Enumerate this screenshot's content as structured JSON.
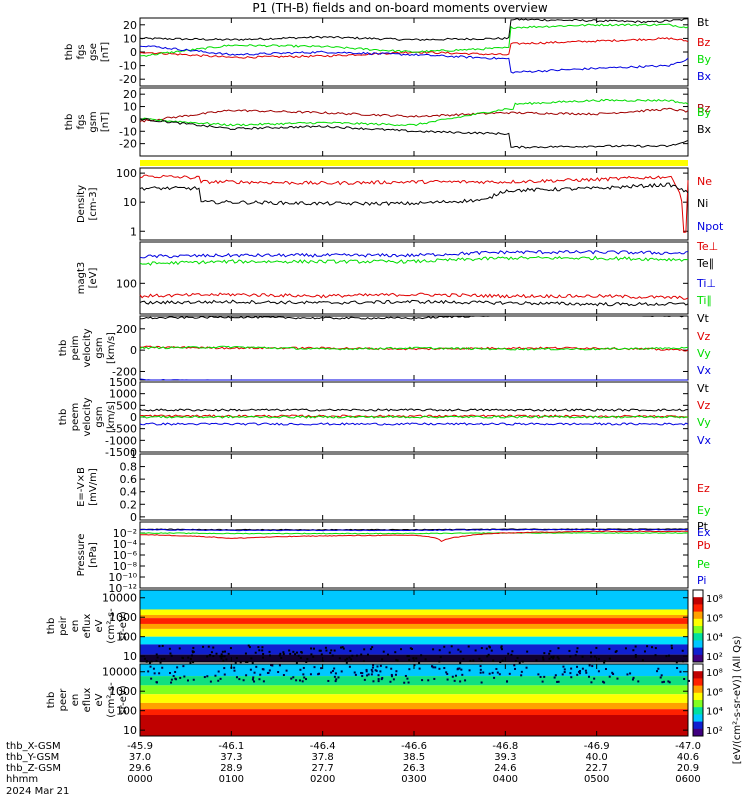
{
  "title": "P1 (TH-B) fields and on-board moments overview",
  "colors": {
    "black": "#000000",
    "red": "#e00000",
    "green": "#00dd00",
    "blue": "#0000e0",
    "darkred": "#a00000",
    "yellow": "#ffff00"
  },
  "chart_data": [
    {
      "type": "line",
      "id": "fgs-gse",
      "ylabel": [
        "thb",
        "fgs",
        "gse",
        "[nT]"
      ],
      "ylim": [
        -25,
        25
      ],
      "yticks": [
        20,
        10,
        0,
        -10,
        -20
      ],
      "legend": [
        {
          "name": "Bt",
          "color": "black"
        },
        {
          "name": "Bz",
          "color": "red"
        },
        {
          "name": "By",
          "color": "green"
        },
        {
          "name": "Bx",
          "color": "blue"
        }
      ],
      "series": [
        {
          "name": "Bt",
          "color": "black",
          "x": [
            0,
            1,
            2,
            3,
            4,
            4.05,
            5,
            5.6,
            5.8,
            6
          ],
          "y": [
            10,
            9,
            11,
            9,
            10,
            24,
            23,
            22,
            23,
            24
          ]
        },
        {
          "name": "Bz",
          "color": "red",
          "x": [
            0,
            1,
            2,
            3,
            4,
            4.05,
            5,
            5.8,
            6
          ],
          "y": [
            0,
            -4,
            -3,
            0,
            -2,
            6,
            8,
            10,
            8
          ]
        },
        {
          "name": "By",
          "color": "green",
          "x": [
            0,
            1,
            2,
            3,
            4,
            4.05,
            5,
            5.8,
            6
          ],
          "y": [
            -3,
            5,
            4,
            0,
            3,
            18,
            20,
            20,
            18
          ]
        },
        {
          "name": "Bx",
          "color": "blue",
          "x": [
            0,
            1,
            2,
            3,
            4,
            4.05,
            5,
            5.8,
            6
          ],
          "y": [
            5,
            -2,
            0,
            -2,
            -5,
            -15,
            -12,
            -10,
            -5
          ]
        }
      ]
    },
    {
      "type": "line",
      "id": "fgs-gsm",
      "ylabel": [
        "thb",
        "fgs",
        "gsm",
        "[nT]"
      ],
      "ylim": [
        -30,
        25
      ],
      "yticks": [
        20,
        10,
        0,
        -10,
        -20
      ],
      "legend": [
        {
          "name": "Bz",
          "color": "darkred"
        },
        {
          "name": "By",
          "color": "green"
        },
        {
          "name": "Bx",
          "color": "black"
        }
      ],
      "series": [
        {
          "name": "Bz",
          "color": "darkred",
          "x": [
            0,
            1,
            2,
            3,
            4,
            5,
            5.8,
            6
          ],
          "y": [
            -2,
            7,
            5,
            2,
            5,
            4,
            8,
            6
          ]
        },
        {
          "name": "By",
          "color": "green",
          "x": [
            0,
            1,
            2,
            3,
            4,
            4.1,
            5,
            5.8,
            6
          ],
          "y": [
            0,
            -5,
            -3,
            -5,
            8,
            12,
            15,
            15,
            12
          ]
        },
        {
          "name": "Bx",
          "color": "black",
          "x": [
            0,
            1,
            2,
            3,
            4,
            4.05,
            5,
            5.8,
            6
          ],
          "y": [
            0,
            -8,
            -6,
            -10,
            -12,
            -23,
            -22,
            -22,
            -18
          ]
        }
      ]
    },
    {
      "type": "line",
      "id": "density",
      "ylog": true,
      "ylabel": [
        "Density",
        "[cm-3]"
      ],
      "ylim": [
        0.5,
        150
      ],
      "yticks": [
        100,
        10,
        1
      ],
      "legend": [
        {
          "name": "Ne",
          "color": "red"
        },
        {
          "name": "Ni",
          "color": "black"
        },
        {
          "name": "Npot",
          "color": "blue"
        }
      ],
      "series": [
        {
          "name": "Ne",
          "color": "red",
          "x": [
            0,
            0.6,
            0.65,
            1,
            2,
            3,
            4,
            5,
            5.8,
            5.95,
            6
          ],
          "y": [
            80,
            70,
            50,
            50,
            45,
            50,
            50,
            60,
            75,
            1,
            50
          ]
        },
        {
          "name": "Ni",
          "color": "black",
          "x": [
            0,
            0.6,
            0.65,
            1,
            2,
            3,
            3.8,
            4,
            5,
            5.8,
            6
          ],
          "y": [
            30,
            30,
            10,
            10,
            9,
            9,
            12,
            25,
            30,
            40,
            20
          ]
        }
      ]
    },
    {
      "type": "line",
      "id": "temperature",
      "ylog": true,
      "ylabel": [
        "magt3",
        "[eV]"
      ],
      "ylim": [
        8,
        3000
      ],
      "yticks": [
        100
      ],
      "legend": [
        {
          "name": "Te⊥",
          "color": "red"
        },
        {
          "name": "Te∥",
          "color": "black"
        },
        {
          "name": "Ti⊥",
          "color": "blue"
        },
        {
          "name": "Ti∥",
          "color": "green"
        }
      ],
      "series": [
        {
          "name": "Ti⊥",
          "color": "blue",
          "x": [
            0,
            1,
            2,
            3,
            4,
            5,
            6
          ],
          "y": [
            900,
            1000,
            1000,
            1000,
            1300,
            1300,
            1200
          ]
        },
        {
          "name": "Ti∥",
          "color": "green",
          "x": [
            0,
            1,
            2,
            3,
            4,
            5,
            6
          ],
          "y": [
            500,
            600,
            600,
            600,
            800,
            800,
            700
          ]
        },
        {
          "name": "Te⊥",
          "color": "red",
          "x": [
            0,
            1,
            2,
            3,
            4,
            5,
            6
          ],
          "y": [
            35,
            40,
            35,
            40,
            35,
            35,
            30
          ]
        },
        {
          "name": "Te∥",
          "color": "black",
          "x": [
            0,
            1,
            2,
            3,
            4,
            5,
            6
          ],
          "y": [
            20,
            22,
            20,
            22,
            20,
            18,
            18
          ]
        }
      ]
    },
    {
      "type": "line",
      "id": "peim-velocity",
      "ylabel": [
        "thb",
        "peim",
        "velocity",
        "gsm",
        "[km/s]"
      ],
      "ylim": [
        -280,
        320
      ],
      "yticks": [
        200,
        0,
        -200
      ],
      "legend": [
        {
          "name": "Vt",
          "color": "black"
        },
        {
          "name": "Vz",
          "color": "red"
        },
        {
          "name": "Vy",
          "color": "green"
        },
        {
          "name": "Vx",
          "color": "blue"
        }
      ],
      "series": [
        {
          "name": "Vt",
          "color": "black",
          "x": [
            0,
            1,
            2,
            3,
            4,
            5,
            6
          ],
          "y": [
            300,
            310,
            300,
            300,
            330,
            330,
            320
          ]
        },
        {
          "name": "Vz",
          "color": "red",
          "x": [
            0,
            1,
            2,
            3,
            4,
            5,
            6
          ],
          "y": [
            30,
            20,
            20,
            10,
            20,
            20,
            0
          ]
        },
        {
          "name": "Vy",
          "color": "green",
          "x": [
            0,
            1,
            2,
            3,
            4,
            5,
            6
          ],
          "y": [
            20,
            30,
            10,
            20,
            10,
            10,
            20
          ]
        },
        {
          "name": "Vx",
          "color": "blue",
          "x": [
            0,
            1,
            2,
            3,
            3.8,
            4,
            5,
            6
          ],
          "y": [
            -280,
            -290,
            -290,
            -290,
            -300,
            -330,
            -330,
            -300
          ]
        }
      ]
    },
    {
      "type": "line",
      "id": "peem-velocity",
      "ylabel": [
        "thb",
        "peem",
        "velocity",
        "gsm",
        "[km/s]"
      ],
      "ylim": [
        -1500,
        1500
      ],
      "yticks": [
        1500,
        1000,
        500,
        0,
        -500,
        -1000,
        -1500
      ],
      "legend": [
        {
          "name": "Vt",
          "color": "black"
        },
        {
          "name": "Vz",
          "color": "red"
        },
        {
          "name": "Vy",
          "color": "green"
        },
        {
          "name": "Vx",
          "color": "blue"
        }
      ],
      "series": [
        {
          "name": "Vt",
          "color": "black",
          "x": [
            0,
            1,
            2,
            3,
            4,
            5,
            6
          ],
          "y": [
            300,
            300,
            300,
            300,
            300,
            300,
            300
          ]
        },
        {
          "name": "Vz",
          "color": "red",
          "x": [
            0,
            1,
            2,
            3,
            4,
            5,
            6
          ],
          "y": [
            50,
            40,
            40,
            40,
            40,
            30,
            30
          ]
        },
        {
          "name": "Vy",
          "color": "green",
          "x": [
            0,
            1,
            2,
            3,
            4,
            5,
            6
          ],
          "y": [
            0,
            0,
            0,
            0,
            0,
            0,
            0
          ]
        },
        {
          "name": "Vx",
          "color": "blue",
          "x": [
            0,
            1,
            2,
            3,
            4,
            5,
            6
          ],
          "y": [
            -300,
            -300,
            -300,
            -300,
            -300,
            -300,
            -300
          ]
        }
      ]
    },
    {
      "type": "line",
      "id": "efield",
      "ylabel": [
        "E=-V×B",
        "[mV/m]"
      ],
      "ylim": [
        -0.05,
        1.0
      ],
      "yticks": [
        1.0,
        0.8,
        0.6,
        0.4,
        0.2,
        0.0
      ],
      "legend": [
        {
          "name": "Ez",
          "color": "red"
        },
        {
          "name": "Ey",
          "color": "green"
        },
        {
          "name": "Ex",
          "color": "blue"
        }
      ],
      "series": []
    },
    {
      "type": "line",
      "id": "pressure",
      "ylog": true,
      "ylabel": [
        "Pressure",
        "[nPa]"
      ],
      "ylim": [
        1e-12,
        1
      ],
      "yticks": [
        "10⁻²",
        "10⁻⁴",
        "10⁻⁶",
        "10⁻⁸",
        "10⁻¹⁰",
        "10⁻¹²"
      ],
      "legend": [
        {
          "name": "Pt",
          "color": "black"
        },
        {
          "name": "Pb",
          "color": "red"
        },
        {
          "name": "Pe",
          "color": "green"
        },
        {
          "name": "Pi",
          "color": "blue"
        }
      ],
      "series": [
        {
          "name": "Pt",
          "color": "black",
          "x": [
            0,
            1,
            2,
            3,
            4,
            5,
            6
          ],
          "y": [
            0.05,
            0.04,
            0.04,
            0.04,
            0.05,
            0.05,
            0.05
          ]
        },
        {
          "name": "Pi",
          "color": "blue",
          "x": [
            0,
            1,
            2,
            3,
            4,
            5,
            6
          ],
          "y": [
            0.04,
            0.03,
            0.03,
            0.03,
            0.04,
            0.04,
            0.04
          ]
        },
        {
          "name": "Pe",
          "color": "green",
          "x": [
            0,
            1,
            2,
            3,
            4,
            5,
            6
          ],
          "y": [
            0.01,
            0.008,
            0.008,
            0.008,
            0.01,
            0.01,
            0.01
          ]
        },
        {
          "name": "Pb",
          "color": "red",
          "x": [
            0,
            0.5,
            1,
            2,
            3,
            3.3,
            3.5,
            4,
            5,
            6
          ],
          "y": [
            0.005,
            0.003,
            0.001,
            0.003,
            0.004,
            0.0003,
            0.002,
            0.01,
            0.02,
            0.02
          ]
        }
      ]
    },
    {
      "type": "heatmap",
      "id": "peir-spectrogram",
      "ylog": true,
      "ylabel": [
        "thb",
        "peir",
        "en",
        "eflux",
        "eV",
        "(cm²-s-",
        "sr-eV)"
      ],
      "ylim": [
        5,
        25000
      ],
      "yticks": [
        10000,
        1000,
        100,
        10
      ]
    },
    {
      "type": "heatmap",
      "id": "peer-spectrogram",
      "ylog": true,
      "ylabel": [
        "thb",
        "peer",
        "en",
        "eflux",
        "eV",
        "(cm²-s-",
        "sr-eV)"
      ],
      "ylim": [
        5,
        25000
      ],
      "yticks": [
        10000,
        1000,
        100,
        10
      ]
    }
  ],
  "colorbars": [
    {
      "ticks": [
        "10⁸",
        "10⁶",
        "10⁴",
        "10²"
      ],
      "label": "[eV/(cm²-s-sr-eV)] (All Qs)"
    },
    {
      "ticks": [
        "10⁸",
        "10⁶",
        "10⁴",
        "10²"
      ],
      "label": "[eV/(cm²-s-sr-eV)] (All Qs)"
    }
  ],
  "time_axis": {
    "row_labels": [
      "thb_X-GSM",
      "thb_Y-GSM",
      "thb_Z-GSM",
      "hhmm",
      "2024 Mar 21"
    ],
    "columns": [
      [
        "-45.9",
        "37.0",
        "29.6",
        "0000"
      ],
      [
        "-46.1",
        "37.3",
        "28.9",
        "0100"
      ],
      [
        "-46.4",
        "37.8",
        "27.7",
        "0200"
      ],
      [
        "-46.6",
        "38.5",
        "26.3",
        "0300"
      ],
      [
        "-46.8",
        "39.3",
        "24.6",
        "0400"
      ],
      [
        "-46.9",
        "40.0",
        "22.7",
        "0500"
      ],
      [
        "-47.0",
        "40.6",
        "20.9",
        "0600"
      ]
    ]
  }
}
